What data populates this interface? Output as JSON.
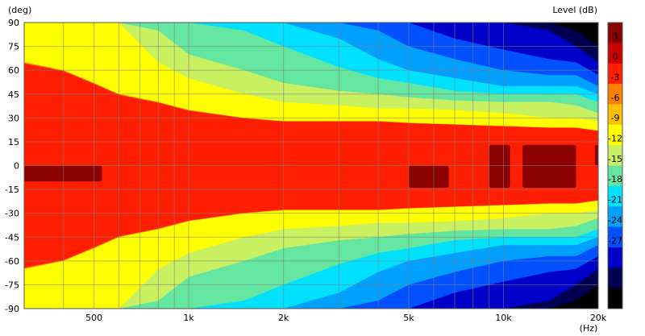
{
  "chart_data": {
    "type": "heatmap",
    "title": "",
    "ylabel": "(deg)",
    "xlabel": "(Hz)",
    "colorbar_label": "Level  (dB)",
    "x_scale": "log",
    "xlim": [
      300,
      20000
    ],
    "ylim": [
      -90,
      90
    ],
    "x_ticks": [
      500,
      1000,
      2000,
      5000,
      10000,
      20000
    ],
    "x_tick_labels": [
      "500",
      "1k",
      "2k",
      "5k",
      "10k",
      "20k"
    ],
    "x_minor_ticks": [
      400,
      600,
      700,
      800,
      900,
      3000,
      4000,
      6000,
      7000,
      8000,
      9000
    ],
    "y_ticks": [
      90,
      75,
      60,
      45,
      30,
      15,
      0,
      -15,
      -30,
      -45,
      -60,
      -75,
      -90
    ],
    "grid": true,
    "colorbar": {
      "levels": [
        3,
        0,
        -3,
        -6,
        -9,
        -12,
        -15,
        -18,
        -21,
        -24,
        -27
      ],
      "colors": [
        "#8b0000",
        "#cc0000",
        "#ff1e00",
        "#ff8000",
        "#ffc000",
        "#ffff00",
        "#c8f060",
        "#64e6a0",
        "#00e0ff",
        "#00a0ff",
        "#0050ff",
        "#0000c8",
        "#000050",
        "#000000"
      ]
    },
    "contour_boundaries_deg": {
      "freq_hz": [
        300,
        400,
        500,
        600,
        800,
        1000,
        1500,
        2000,
        3000,
        4000,
        5000,
        7000,
        10000,
        14000,
        17000,
        20000
      ],
      "dB_-3": [
        65,
        60,
        52,
        45,
        40,
        35,
        30,
        28,
        28,
        28,
        27,
        26,
        25,
        24,
        24,
        22
      ],
      "dB_-6": [
        90,
        90,
        90,
        90,
        65,
        55,
        45,
        40,
        38,
        36,
        36,
        35,
        33,
        30,
        30,
        28
      ],
      "dB_-9": [
        90,
        90,
        90,
        90,
        85,
        70,
        60,
        52,
        47,
        45,
        43,
        41,
        40,
        40,
        38,
        33
      ],
      "dB_-12": [
        90,
        90,
        90,
        90,
        90,
        90,
        85,
        75,
        62,
        55,
        52,
        47,
        45,
        45,
        45,
        40
      ],
      "dB_-15": [
        90,
        90,
        90,
        90,
        90,
        90,
        90,
        90,
        80,
        67,
        60,
        55,
        50,
        50,
        50,
        45
      ],
      "dB_-18": [
        90,
        90,
        90,
        90,
        90,
        90,
        90,
        90,
        90,
        85,
        75,
        67,
        60,
        57,
        57,
        50
      ],
      "dB_-21": [
        90,
        90,
        90,
        90,
        90,
        90,
        90,
        90,
        90,
        90,
        90,
        80,
        73,
        67,
        65,
        57
      ],
      "dB_-24": [
        90,
        90,
        90,
        90,
        90,
        90,
        90,
        90,
        90,
        90,
        90,
        90,
        90,
        85,
        75,
        65
      ],
      "dB_-27": [
        90,
        90,
        90,
        90,
        90,
        90,
        90,
        90,
        90,
        90,
        90,
        90,
        90,
        90,
        85,
        75
      ]
    },
    "peak_regions_above_0dB": [
      {
        "f1": 300,
        "f2": 530,
        "deg1": -10,
        "deg2": 0
      },
      {
        "f1": 5000,
        "f2": 6700,
        "deg1": -14,
        "deg2": 0
      },
      {
        "f1": 9000,
        "f2": 10500,
        "deg1": -14,
        "deg2": 13
      },
      {
        "f1": 11500,
        "f2": 17000,
        "deg1": -14,
        "deg2": 13
      },
      {
        "f1": 19500,
        "f2": 20000,
        "deg1": 0,
        "deg2": 13
      }
    ]
  }
}
